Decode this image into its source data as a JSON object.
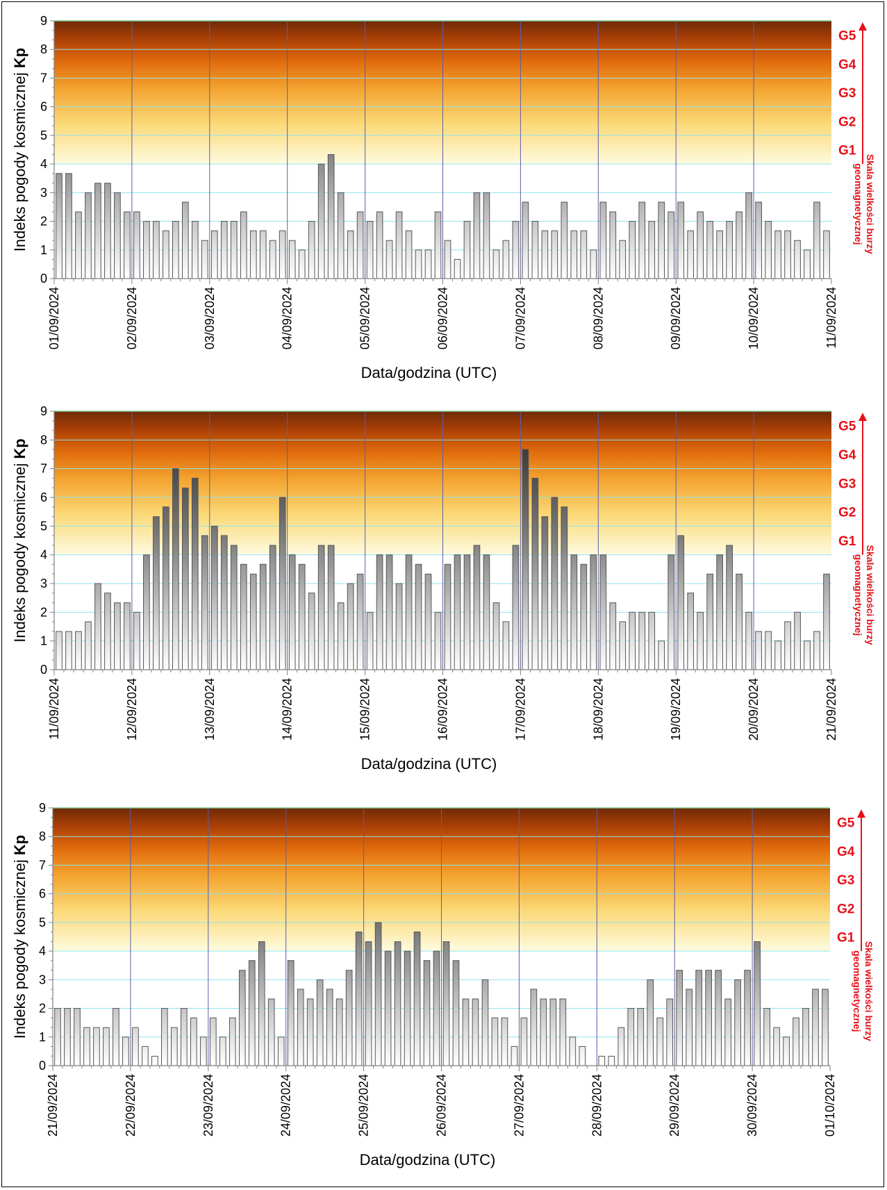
{
  "chart_data": [
    {
      "type": "bar",
      "ylabel_main": "Indeks pogody kosmicznej ",
      "ylabel_bold": "Kp",
      "xlabel": "Data/godzina (UTC)",
      "right_label_line1": "Skala wielkości burzy",
      "right_label_line2": "geomagnetycznej",
      "storm_levels": [
        "G1",
        "G2",
        "G3",
        "G4",
        "G5"
      ],
      "ylim": [
        0,
        9
      ],
      "yticks": [
        "0",
        "1",
        "2",
        "3",
        "4",
        "5",
        "6",
        "7",
        "8",
        "9"
      ],
      "date_ticks": [
        "01/09/2024",
        "02/09/2024",
        "03/09/2024",
        "04/09/2024",
        "05/09/2024",
        "06/09/2024",
        "07/09/2024",
        "08/09/2024",
        "09/09/2024",
        "10/09/2024",
        "11/09/2024"
      ],
      "values": [
        3.67,
        3.67,
        2.33,
        3,
        3.33,
        3.33,
        3,
        2.33,
        2.33,
        2,
        2,
        1.67,
        2,
        2.67,
        2,
        1.33,
        1.67,
        2,
        2,
        2.33,
        1.67,
        1.67,
        1.33,
        1.67,
        1.33,
        1,
        2,
        4,
        4.33,
        3,
        1.67,
        2.33,
        2,
        2.33,
        1.33,
        2.33,
        1.67,
        1,
        1,
        2.33,
        1.33,
        0.67,
        2,
        3,
        3,
        1,
        1.33,
        2,
        2.67,
        2,
        1.67,
        1.67,
        2.67,
        1.67,
        1.67,
        1,
        2.67,
        2.33,
        1.33,
        2,
        2.67,
        2,
        2.67,
        2.33,
        2.67,
        1.67,
        2.33,
        2,
        1.67,
        2,
        2.33,
        3,
        2.67,
        2,
        1.67,
        1.67,
        1.33,
        1,
        2.67,
        1.67
      ]
    },
    {
      "type": "bar",
      "ylabel_main": "Indeks pogody kosmicznej ",
      "ylabel_bold": "Kp",
      "xlabel": "Data/godzina (UTC)",
      "right_label_line1": "Skala wielkości burzy",
      "right_label_line2": "geomagnetycznej",
      "storm_levels": [
        "G1",
        "G2",
        "G3",
        "G4",
        "G5"
      ],
      "ylim": [
        0,
        9
      ],
      "yticks": [
        "0",
        "1",
        "2",
        "3",
        "4",
        "5",
        "6",
        "7",
        "8",
        "9"
      ],
      "date_ticks": [
        "11/09/2024",
        "12/09/2024",
        "13/09/2024",
        "14/09/2024",
        "15/09/2024",
        "16/09/2024",
        "17/09/2024",
        "18/09/2024",
        "19/09/2024",
        "20/09/2024",
        "21/09/2024"
      ],
      "values": [
        1.33,
        1.33,
        1.33,
        1.67,
        3,
        2.67,
        2.33,
        2.33,
        2,
        4,
        5.33,
        5.67,
        7,
        6.33,
        6.67,
        4.67,
        5,
        4.67,
        4.33,
        3.67,
        3.33,
        3.67,
        4.33,
        6,
        4,
        3.67,
        2.67,
        4.33,
        4.33,
        2.33,
        3,
        3.33,
        2,
        4,
        4,
        3,
        4,
        3.67,
        3.33,
        2,
        3.67,
        4,
        4,
        4.33,
        4,
        2.33,
        1.67,
        4.33,
        7.67,
        6.67,
        5.33,
        6,
        5.67,
        4,
        3.67,
        4,
        4,
        2.33,
        1.67,
        2,
        2,
        2,
        1,
        4,
        4.67,
        2.67,
        2,
        3.33,
        4,
        4.33,
        3.33,
        2,
        1.33,
        1.33,
        1,
        1.67,
        2,
        1,
        1.33,
        3.33
      ]
    },
    {
      "type": "bar",
      "ylabel_main": "Indeks pogody kosmicznej ",
      "ylabel_bold": "Kp",
      "xlabel": "Data/godzina (UTC)",
      "right_label_line1": "Skala wielkości burzy",
      "right_label_line2": "geomagnetycznej",
      "storm_levels": [
        "G1",
        "G2",
        "G3",
        "G4",
        "G5"
      ],
      "ylim": [
        0,
        9
      ],
      "yticks": [
        "0",
        "1",
        "2",
        "3",
        "4",
        "5",
        "6",
        "7",
        "8",
        "9"
      ],
      "date_ticks": [
        "21/09/2024",
        "22/09/2024",
        "23/09/2024",
        "24/09/2024",
        "25/09/2024",
        "26/09/2024",
        "27/09/2024",
        "28/09/2024",
        "29/09/2024",
        "30/09/2024",
        "01/10/2024"
      ],
      "values": [
        2,
        2,
        2,
        1.33,
        1.33,
        1.33,
        2,
        1,
        1.33,
        0.67,
        0.33,
        2,
        1.33,
        2,
        1.67,
        1,
        1.67,
        1,
        1.67,
        3.33,
        3.67,
        4.33,
        2.33,
        1,
        3.67,
        2.67,
        2.33,
        3,
        2.67,
        2.33,
        3.33,
        4.67,
        4.33,
        5,
        4,
        4.33,
        4,
        4.67,
        3.67,
        4,
        4.33,
        3.67,
        2.33,
        2.33,
        3,
        1.67,
        1.67,
        0.67,
        1.67,
        2.67,
        2.33,
        2.33,
        2.33,
        1,
        0.67,
        0,
        0.33,
        0.33,
        1.33,
        2,
        2,
        3,
        1.67,
        2.33,
        3.33,
        2.67,
        3.33,
        3.33,
        3.33,
        2.33,
        3,
        3.33,
        4.33,
        2,
        1.33,
        1,
        1.67,
        2,
        2.67,
        2.67
      ]
    }
  ]
}
